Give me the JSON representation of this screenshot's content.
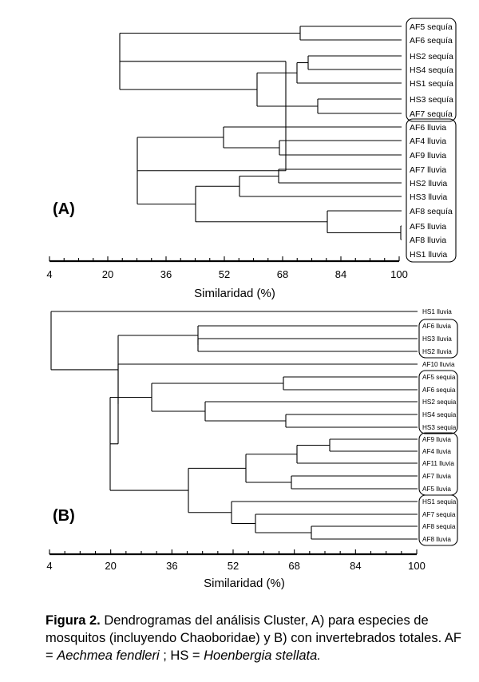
{
  "panels": [
    {
      "id": "A",
      "panel_label": "(A)",
      "axis_label": "Similaridad (%)",
      "ticks": [
        "4",
        "20",
        "36",
        "52",
        "68",
        "84",
        "100"
      ],
      "leaves": [
        "AF5 sequía",
        "AF6 sequía",
        "HS2 sequía",
        "HS4 sequía",
        "HS1 sequía",
        "HS3 sequía",
        "AF7 sequía",
        "AF6 lluvia",
        "AF4 lluvia",
        "AF9 lluvia",
        "AF7 lluvia",
        "HS2 lluvia",
        "HS3 lluvia",
        "AF8 sequía",
        "AF5 lluvia",
        "AF8 lluvia",
        "HS1 lluvia"
      ]
    },
    {
      "id": "B",
      "panel_label": "(B)",
      "axis_label": "Similaridad (%)",
      "ticks": [
        "4",
        "20",
        "36",
        "52",
        "68",
        "84",
        "100"
      ],
      "leaves": [
        "HS1 lluvia",
        "AF6 lluvia",
        "HS3 lluvia",
        "HS2 lluvia",
        "AF10 lluvia",
        "AF5 sequia",
        "AF6 sequia",
        "HS2 sequia",
        "HS4 sequia",
        "HS3 sequia",
        "AF9 lluvia",
        "AF4 lluvia",
        "AF11 lluvia",
        "AF7 lluvia",
        "AF5 lluvia",
        "HS1 sequia",
        "AF7 sequia",
        "AF8 sequia",
        "AF8 lluvia"
      ]
    }
  ],
  "caption": {
    "bold": "Figura 2.",
    "text1": " Dendrogramas del análisis Cluster, A) para especies de mosquitos (incluyendo Chaoboridae) y B) con invertebrados totales. AF = ",
    "species1": "Aechmea fendleri",
    "text2": " ; HS = ",
    "species2": "Hoenbergia stellata."
  }
}
